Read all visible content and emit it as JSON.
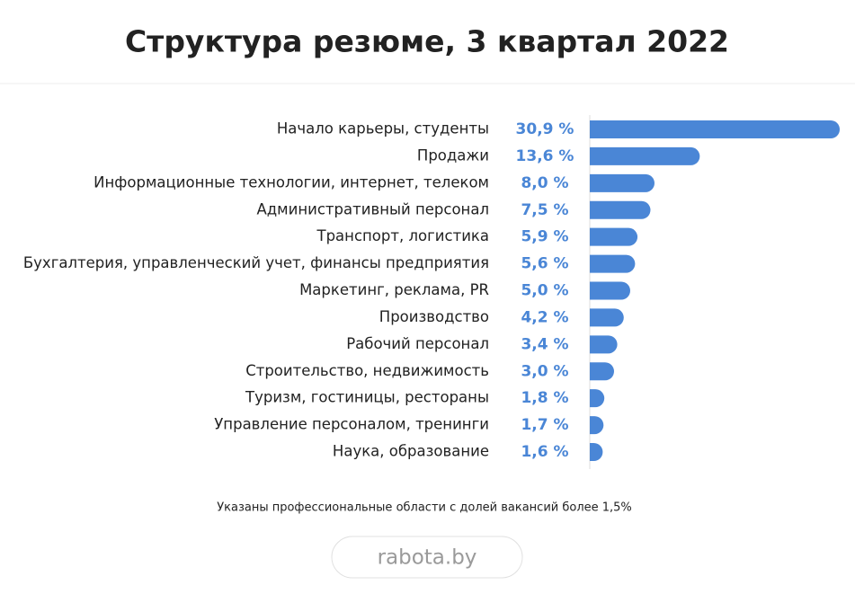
{
  "chart_data": {
    "type": "bar",
    "orientation": "horizontal",
    "title": "Структура резюме, 3 квартал 2022",
    "categories": [
      "Начало карьеры, студенты",
      "Продажи",
      "Информационные технологии, интернет, телеком",
      "Административный персонал",
      "Транспорт, логистика",
      "Бухгалтерия, управленческий учет, финансы предприятия",
      "Маркетинг, реклама, PR",
      "Производство",
      "Рабочий персонал",
      "Строительство, недвижимость",
      "Туризм, гостиницы, рестораны",
      "Управление персоналом, тренинги",
      "Наука, образование"
    ],
    "values": [
      30.9,
      13.6,
      8.0,
      7.5,
      5.9,
      5.6,
      5.0,
      4.2,
      3.4,
      3.0,
      1.8,
      1.7,
      1.6
    ],
    "value_labels": [
      "30,9 %",
      "13,6 %",
      "8,0 %",
      "7,5 %",
      "5,9 %",
      "5,6 %",
      "5,0 %",
      "4,2 %",
      "3,4 %",
      "3,0 %",
      "1,8 %",
      "1,7 %",
      "1,6 %"
    ],
    "color": "#4a86d6",
    "footnote": "Указаны профессиональные области с долей вакансий более 1,5%",
    "source": "rabota.by"
  }
}
